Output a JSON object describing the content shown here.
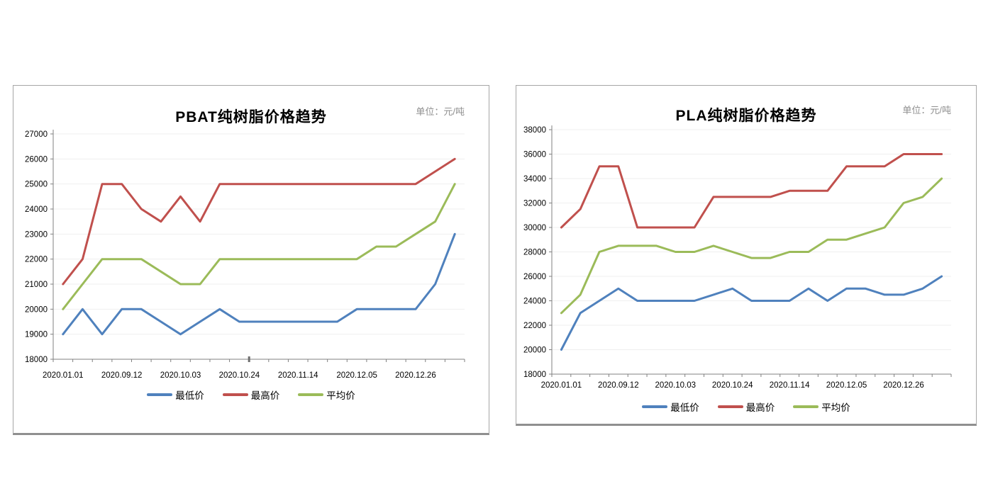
{
  "app": {
    "background": "#ffffff"
  },
  "chart_data": [
    {
      "id": "pbat",
      "type": "line",
      "title": "PBAT纯树脂价格趋势",
      "unit_label": "单位：元/吨",
      "n_points": 21,
      "x_tick_labels": [
        "2020.01.01",
        "2020.09.12",
        "2020.10.03",
        "2020.10.24",
        "2020.11.14",
        "2020.12.05",
        "2020.12.26"
      ],
      "x_tick_label_indices": [
        0,
        3,
        6,
        9,
        12,
        15,
        18
      ],
      "ylim": [
        18000,
        27000
      ],
      "y_step": 1000,
      "grid": true,
      "legend_position": "bottom",
      "axis_color": "#808080",
      "grid_color": "#efefef",
      "series": [
        {
          "name": "最低价",
          "key": "min-price",
          "color": "#4f81bd",
          "values": [
            19000,
            20000,
            19000,
            20000,
            20000,
            19500,
            19000,
            19500,
            20000,
            19500,
            19500,
            19500,
            19500,
            19500,
            19500,
            20000,
            20000,
            20000,
            20000,
            21000,
            23000
          ]
        },
        {
          "name": "最高价",
          "key": "max-price",
          "color": "#c0504d",
          "values": [
            21000,
            22000,
            25000,
            25000,
            24000,
            23500,
            24500,
            23500,
            25000,
            25000,
            25000,
            25000,
            25000,
            25000,
            25000,
            25000,
            25000,
            25000,
            25000,
            25500,
            26000
          ]
        },
        {
          "name": "平均价",
          "key": "avg-price",
          "color": "#9bbb59",
          "values": [
            20000,
            21000,
            22000,
            22000,
            22000,
            21500,
            21000,
            21000,
            22000,
            22000,
            22000,
            22000,
            22000,
            22000,
            22000,
            22000,
            22500,
            22500,
            23000,
            23500,
            25000
          ]
        }
      ]
    },
    {
      "id": "pla",
      "type": "line",
      "title": "PLA纯树脂价格趋势",
      "unit_label": "单位：元/吨",
      "n_points": 21,
      "x_tick_labels": [
        "2020.01.01",
        "2020.09.12",
        "2020.10.03",
        "2020.10.24",
        "2020.11.14",
        "2020.12.05",
        "2020.12.26"
      ],
      "x_tick_label_indices": [
        0,
        3,
        6,
        9,
        12,
        15,
        18
      ],
      "ylim": [
        18000,
        38000
      ],
      "y_step": 2000,
      "grid": true,
      "legend_position": "bottom",
      "axis_color": "#808080",
      "grid_color": "#efefef",
      "series": [
        {
          "name": "最低价",
          "key": "min-price",
          "color": "#4f81bd",
          "values": [
            20000,
            23000,
            24000,
            25000,
            24000,
            24000,
            24000,
            24000,
            24500,
            25000,
            24000,
            24000,
            24000,
            25000,
            24000,
            25000,
            25000,
            24500,
            24500,
            25000,
            26000
          ]
        },
        {
          "name": "最高价",
          "key": "max-price",
          "color": "#c0504d",
          "values": [
            30000,
            31500,
            35000,
            35000,
            30000,
            30000,
            30000,
            30000,
            32500,
            32500,
            32500,
            32500,
            33000,
            33000,
            33000,
            35000,
            35000,
            35000,
            36000,
            36000,
            36000
          ]
        },
        {
          "name": "平均价",
          "key": "avg-price",
          "color": "#9bbb59",
          "values": [
            23000,
            24500,
            28000,
            28500,
            28500,
            28500,
            28000,
            28000,
            28500,
            28000,
            27500,
            27500,
            28000,
            28000,
            29000,
            29000,
            29500,
            30000,
            32000,
            32500,
            34000
          ]
        }
      ]
    }
  ]
}
